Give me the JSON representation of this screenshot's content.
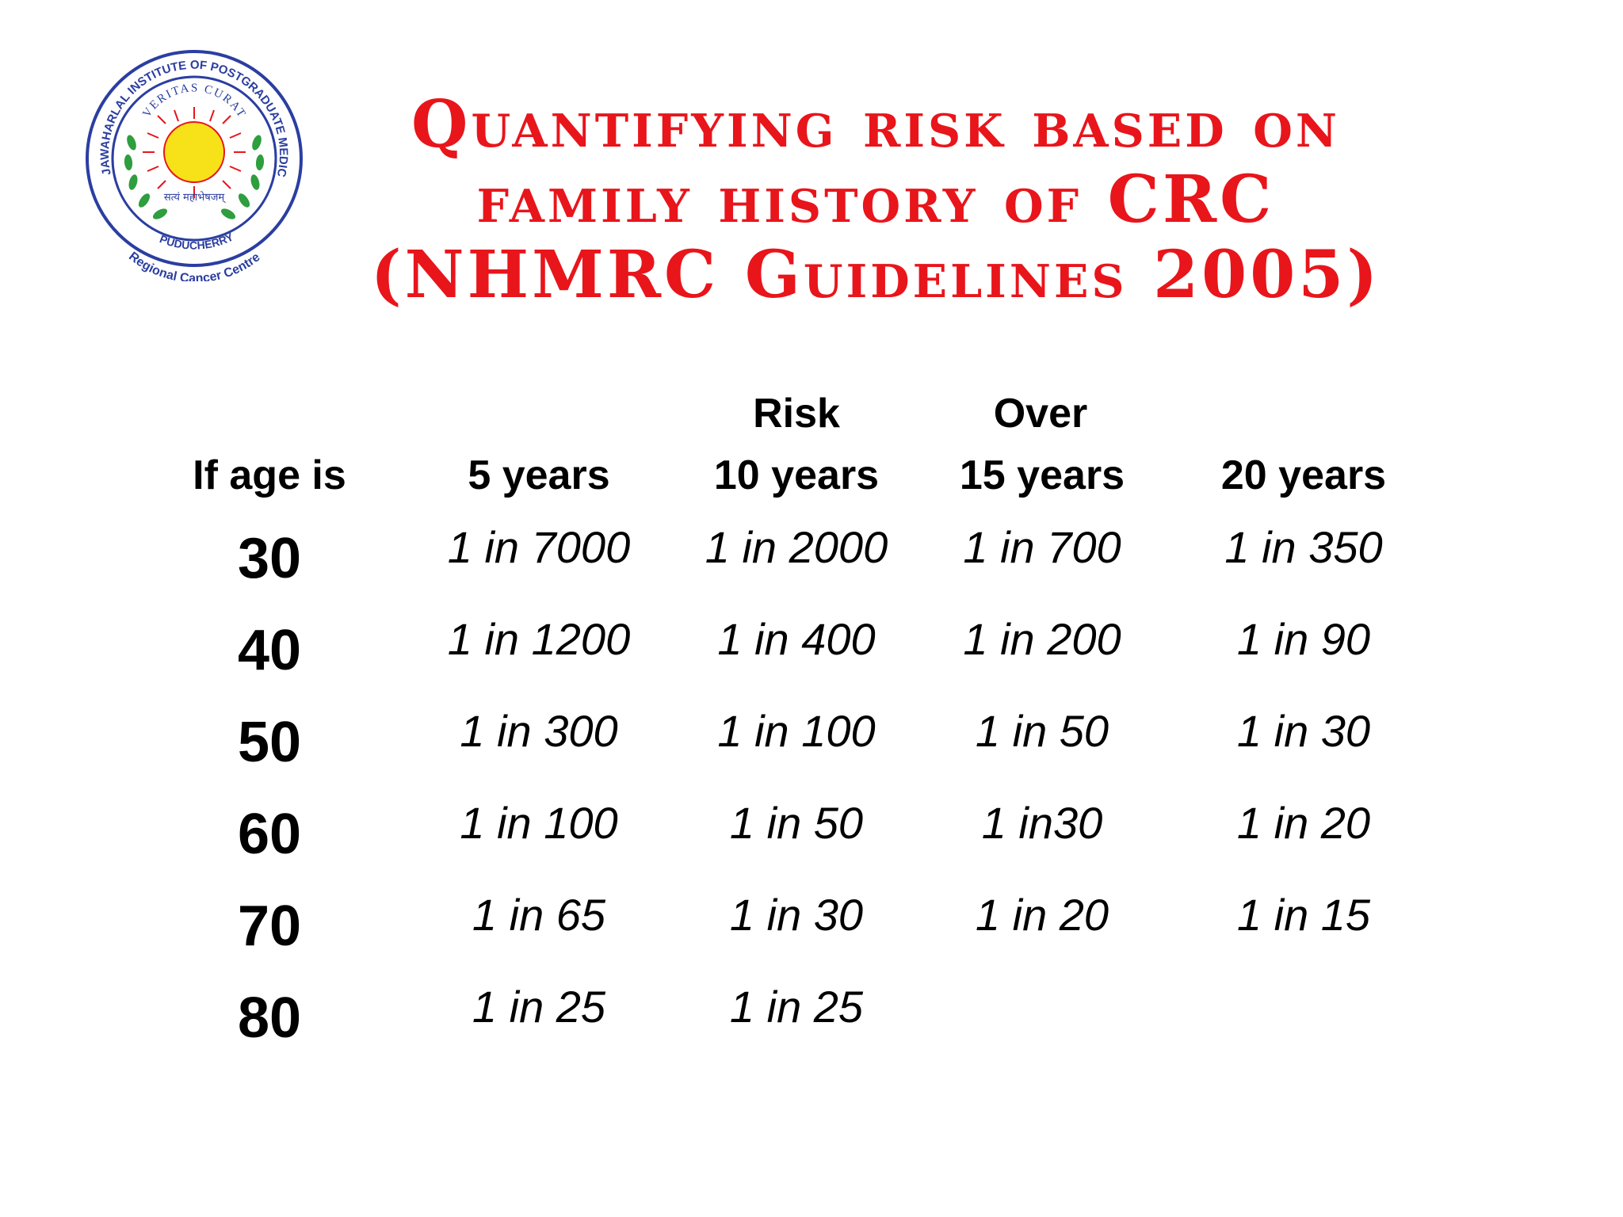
{
  "logo": {
    "outer_text_top": "JAWAHARLAL INSTITUTE OF POSTGRADUATE MEDICAL EDUCATION & RESEARCH",
    "motto": "VERITAS CURAT",
    "hindi_text": "सत्यं महाभेषजम्",
    "place": "PUDUCHERRY",
    "centre": "Regional Cancer Centre",
    "colors": {
      "ring": "#2b3ea0",
      "sun": "#f7e21a",
      "rays": "#e8151b",
      "wreath": "#2e9e3e"
    }
  },
  "title": {
    "line1": "Quantifying risk based on",
    "line2": "family history of CRC",
    "line3": "(NHMRC Guidelines 2005)",
    "color": "#e8151b"
  },
  "table": {
    "super_headers": [
      "Risk",
      "Over"
    ],
    "col_headers": [
      "If age is",
      "5 years",
      "10 years",
      "15 years",
      "20 years"
    ],
    "rows": [
      {
        "age": "30",
        "values": [
          "1 in 7000",
          "1 in 2000",
          "1 in 700",
          "1 in 350"
        ]
      },
      {
        "age": "40",
        "values": [
          "1 in 1200",
          "1 in 400",
          "1 in 200",
          "1 in 90"
        ]
      },
      {
        "age": "50",
        "values": [
          "1 in 300",
          "1 in 100",
          "1 in 50",
          "1 in 30"
        ]
      },
      {
        "age": "60",
        "values": [
          "1 in 100",
          "1 in 50",
          "1 in30",
          "1 in 20"
        ]
      },
      {
        "age": "70",
        "values": [
          "1 in 65",
          "1 in 30",
          "1 in 20",
          "1 in 15"
        ]
      },
      {
        "age": "80",
        "values": [
          "1 in 25",
          "1 in 25",
          "",
          ""
        ]
      }
    ]
  }
}
